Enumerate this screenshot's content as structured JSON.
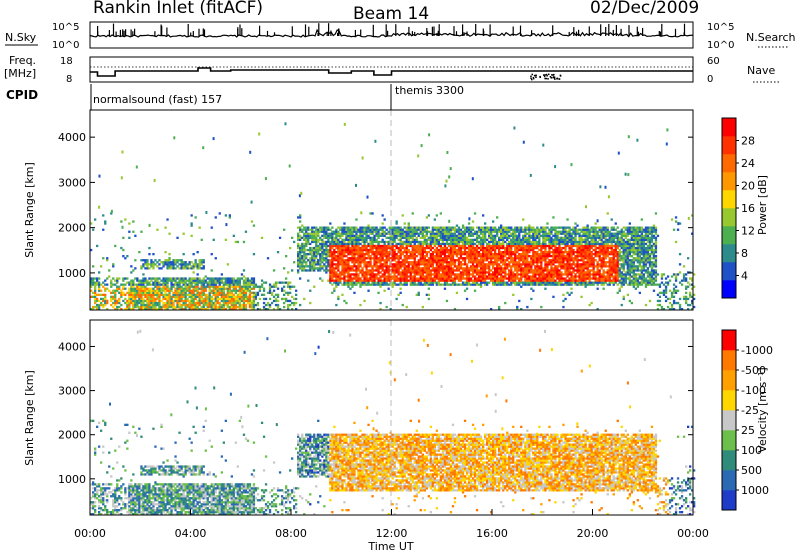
{
  "header": {
    "station": "Rankin Inlet (fitACF)",
    "beam": "Beam 14",
    "date": "02/Dec/2009"
  },
  "noise_panel": {
    "left_label": "N.Sky",
    "right_label": "N.Search",
    "left_ticks": [
      "10^5",
      "10^0"
    ],
    "right_ticks": [
      "10^5",
      "10^0"
    ]
  },
  "freq_panel": {
    "left_label_1": "Freq.",
    "left_label_2": "[MHz]",
    "right_label": "Nave",
    "left_ticks": [
      "18",
      "8"
    ],
    "right_ticks": [
      "60",
      "0"
    ]
  },
  "cpid_panel": {
    "label": "CPID",
    "programs": [
      {
        "name": "normalsound (fast) 157",
        "start_hour": 0
      },
      {
        "name": "themis 3300",
        "start_hour": 12
      }
    ]
  },
  "chart_data": [
    {
      "type": "heatmap",
      "ylabel": "Slant Range [km]",
      "xlim": [
        0,
        24
      ],
      "ylim": [
        180,
        4600
      ],
      "yticks": [
        1000,
        2000,
        3000,
        4000
      ],
      "colorbar": {
        "label": "Power [dB]",
        "ticks": [
          "4",
          "8",
          "12",
          "16",
          "20",
          "24",
          "28"
        ],
        "colors": [
          "#0000ff",
          "#1e50c8",
          "#2e8b8b",
          "#4caf50",
          "#98c830",
          "#ffd700",
          "#ff9800",
          "#ff6a00",
          "#ff3200",
          "#ff0000"
        ]
      }
    },
    {
      "type": "heatmap",
      "ylabel": "Slant Range [km]",
      "xlabel": "Time UT",
      "xlim": [
        0,
        24
      ],
      "ylim": [
        180,
        4600
      ],
      "yticks": [
        1000,
        2000,
        3000,
        4000
      ],
      "xticks": [
        "00:00",
        "04:00",
        "08:00",
        "12:00",
        "16:00",
        "20:00",
        "00:00"
      ],
      "colorbar": {
        "label": "Velocity [m s^-1]",
        "ticks": [
          "1000",
          "500",
          "100",
          "25",
          "-25",
          "-100",
          "-500",
          "-1000"
        ],
        "colors": [
          "#1e3cc8",
          "#2a6ab4",
          "#2f8c7a",
          "#6cbf4a",
          "#c8c8c8",
          "#ffd700",
          "#ffa000",
          "#ff7800",
          "#ff0000"
        ]
      }
    }
  ]
}
